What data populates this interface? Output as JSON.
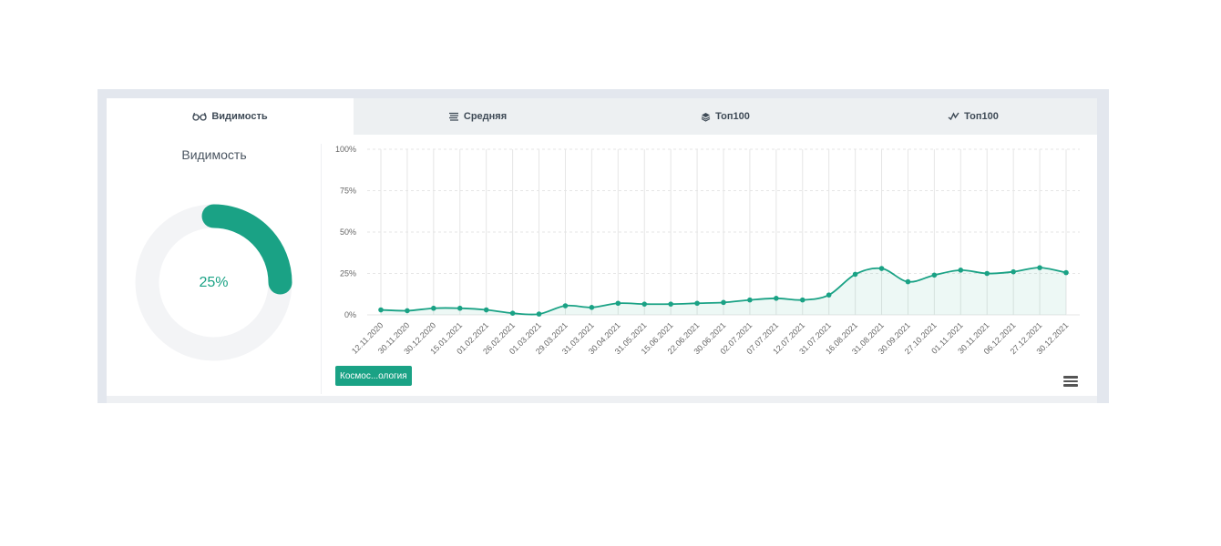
{
  "tabs": [
    {
      "label": "Видимость",
      "icon": "glasses-icon",
      "active": true
    },
    {
      "label": "Средняя",
      "icon": "bars-icon",
      "active": false
    },
    {
      "label": "Топ100",
      "icon": "layers-icon",
      "active": false
    },
    {
      "label": "Топ100",
      "icon": "pulse-icon",
      "active": false
    }
  ],
  "left": {
    "title": "Видимость",
    "gauge_value_label": "25%",
    "gauge_fraction": 0.25
  },
  "legend": {
    "label": "Космос...ология"
  },
  "colors": {
    "accent": "#1aa285",
    "track": "#f3f4f6"
  },
  "chart_data": {
    "type": "area",
    "x": [
      "12.11.2020",
      "30.11.2020",
      "30.12.2020",
      "15.01.2021",
      "01.02.2021",
      "26.02.2021",
      "01.03.2021",
      "29.03.2021",
      "31.03.2021",
      "30.04.2021",
      "31.05.2021",
      "15.06.2021",
      "22.06.2021",
      "30.06.2021",
      "02.07.2021",
      "07.07.2021",
      "12.07.2021",
      "31.07.2021",
      "16.08.2021",
      "31.08.2021",
      "30.09.2021",
      "27.10.2021",
      "01.11.2021",
      "30.11.2021",
      "06.12.2021",
      "27.12.2021",
      "30.12.2021"
    ],
    "series": [
      {
        "values": [
          3,
          2.5,
          4,
          4,
          3,
          1,
          0.5,
          5.5,
          4.5,
          7,
          6.5,
          6.5,
          7,
          7.5,
          9,
          10,
          9,
          12,
          24.5,
          28,
          20,
          24,
          27,
          25,
          26,
          28.5,
          25.5
        ]
      }
    ],
    "y_ticks": [
      "0%",
      "25%",
      "50%",
      "75%",
      "100%"
    ],
    "ylim": [
      0,
      100
    ],
    "grid": true
  }
}
